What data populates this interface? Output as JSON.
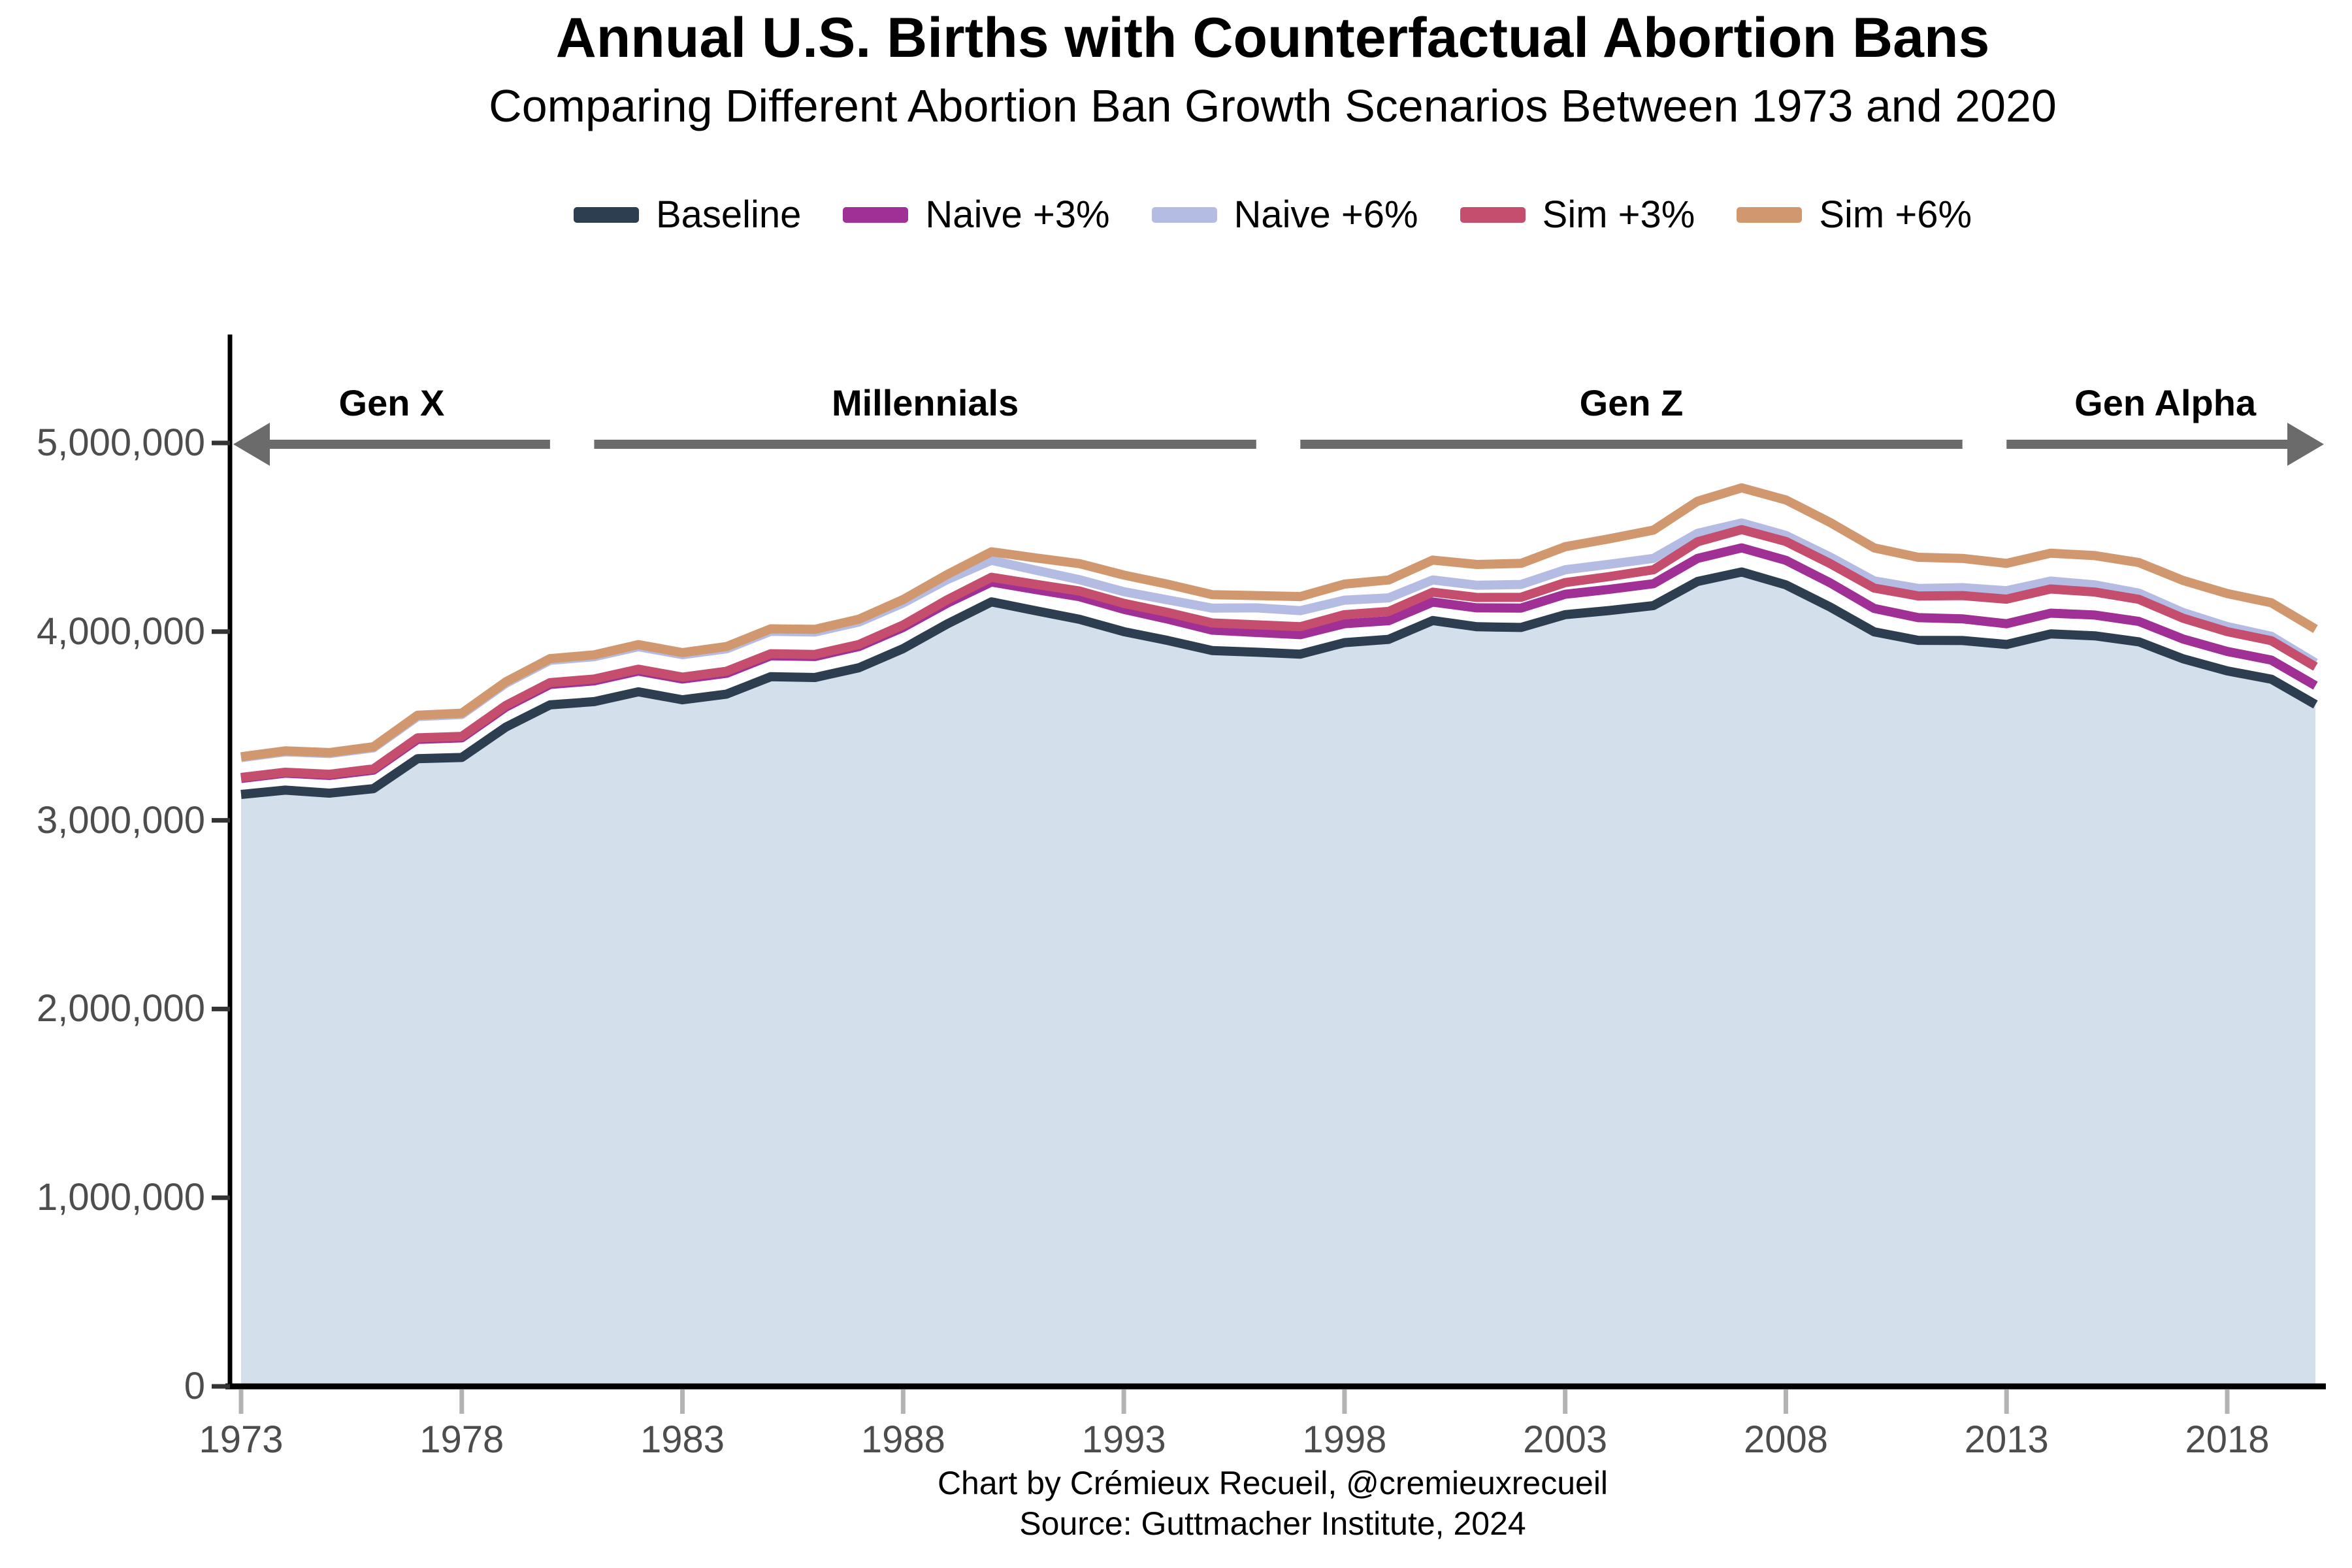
{
  "title": "Annual U.S. Births with Counterfactual Abortion Bans",
  "subtitle": "Comparing Different Abortion Ban Growth Scenarios Between 1973 and 2020",
  "footer": {
    "line1": "Chart by Crémieux Recueil, @cremieuxrecueil",
    "line2": "Source: Guttmacher Institute, 2024"
  },
  "palette": {
    "background": "#ffffff",
    "axis_line": "#000000",
    "y_tick_mark": "#333333",
    "x_tick_mark": "#b3b3b3",
    "axis_text": "#4d4d4d",
    "generation_arrow": "#6b6b6b",
    "area_fill": "#d3dfeb"
  },
  "chart_data": {
    "type": "line",
    "title": "Annual U.S. Births with Counterfactual Abortion Bans",
    "subtitle": "Comparing Different Abortion Ban Growth Scenarios Between 1973 and 2020",
    "xlabel": "",
    "ylabel": "",
    "legend_position": "top",
    "grid": false,
    "xlim": [
      1973,
      2020
    ],
    "ylim": [
      0,
      5000000
    ],
    "x": [
      1973,
      1974,
      1975,
      1976,
      1977,
      1978,
      1979,
      1980,
      1981,
      1982,
      1983,
      1984,
      1985,
      1986,
      1987,
      1988,
      1989,
      1990,
      1991,
      1992,
      1993,
      1994,
      1995,
      1996,
      1997,
      1998,
      1999,
      2000,
      2001,
      2002,
      2003,
      2004,
      2005,
      2006,
      2007,
      2008,
      2009,
      2010,
      2011,
      2012,
      2013,
      2014,
      2015,
      2016,
      2017,
      2018,
      2019,
      2020
    ],
    "y_ticks": [
      0,
      1000000,
      2000000,
      3000000,
      4000000,
      5000000
    ],
    "y_tick_labels": [
      "0",
      "1,000,000",
      "2,000,000",
      "3,000,000",
      "4,000,000",
      "5,000,000"
    ],
    "x_ticks": [
      1973,
      1978,
      1983,
      1988,
      1993,
      1998,
      2003,
      2008,
      2013,
      2018
    ],
    "x_tick_labels": [
      "1973",
      "1978",
      "1983",
      "1988",
      "1993",
      "1998",
      "2003",
      "2008",
      "2013",
      "2018"
    ],
    "series": [
      {
        "name": "Baseline",
        "color": "#2c3e50",
        "area_fill": "#d3dfeb",
        "values": [
          3137000,
          3160000,
          3144000,
          3168000,
          3327000,
          3333000,
          3494000,
          3612000,
          3629000,
          3681000,
          3639000,
          3669000,
          3761000,
          3757000,
          3809000,
          3910000,
          4041000,
          4158000,
          4111000,
          4065000,
          4000000,
          3953000,
          3900000,
          3891000,
          3881000,
          3942000,
          3959000,
          4059000,
          4026000,
          4022000,
          4090000,
          4112000,
          4138000,
          4266000,
          4316000,
          4248000,
          4131000,
          3999000,
          3954000,
          3953000,
          3932000,
          3988000,
          3978000,
          3946000,
          3856000,
          3792000,
          3748000,
          3614000
        ]
      },
      {
        "name": "Naive +3%",
        "color": "#a02f96",
        "values": [
          3222000,
          3250000,
          3238000,
          3266000,
          3429000,
          3437000,
          3600000,
          3720000,
          3739000,
          3791000,
          3749000,
          3779000,
          3872000,
          3868000,
          3921000,
          4022000,
          4151000,
          4263000,
          4223000,
          4185000,
          4118000,
          4066000,
          4008000,
          3996000,
          3984000,
          4042000,
          4058000,
          4157000,
          4126000,
          4125000,
          4198000,
          4224000,
          4254000,
          4388000,
          4444000,
          4378000,
          4259000,
          4123000,
          4074000,
          4068000,
          4042000,
          4098000,
          4088000,
          4054000,
          3961000,
          3895000,
          3849000,
          3714000
        ]
      },
      {
        "name": "Naive +6%",
        "color": "#b5bce3",
        "values": [
          3332000,
          3363000,
          3354000,
          3384000,
          3550000,
          3561000,
          3726000,
          3848000,
          3867000,
          3920000,
          3878000,
          3909000,
          4002000,
          3998000,
          4051000,
          4152000,
          4276000,
          4378000,
          4326000,
          4275000,
          4212000,
          4168000,
          4125000,
          4126000,
          4111000,
          4167000,
          4179000,
          4274000,
          4246000,
          4250000,
          4328000,
          4357000,
          4388000,
          4521000,
          4576000,
          4510000,
          4396000,
          4269000,
          4229000,
          4233000,
          4217000,
          4268000,
          4248000,
          4204000,
          4101000,
          4027000,
          3975000,
          3834000
        ]
      },
      {
        "name": "Sim +3%",
        "color": "#c54d6d",
        "values": [
          3227000,
          3255000,
          3244000,
          3273000,
          3437000,
          3445000,
          3609000,
          3730000,
          3749000,
          3801000,
          3759000,
          3790000,
          3883000,
          3879000,
          3932000,
          4035000,
          4169000,
          4288000,
          4251000,
          4215000,
          4150000,
          4101000,
          4046000,
          4036000,
          4026000,
          4090000,
          4107000,
          4209000,
          4181000,
          4182000,
          4260000,
          4292000,
          4328000,
          4476000,
          4541000,
          4478000,
          4361000,
          4231000,
          4189000,
          4191000,
          4172000,
          4226000,
          4210000,
          4171000,
          4071000,
          4000000,
          3952000,
          3814000
        ]
      },
      {
        "name": "Sim +6%",
        "color": "#d1986f",
        "values": [
          3337000,
          3368000,
          3359000,
          3390000,
          3557000,
          3568000,
          3734000,
          3857000,
          3877000,
          3931000,
          3889000,
          3921000,
          4015000,
          4012000,
          4066000,
          4170000,
          4303000,
          4423000,
          4391000,
          4360000,
          4300000,
          4251000,
          4196000,
          4191000,
          4186000,
          4252000,
          4274000,
          4379000,
          4356000,
          4362000,
          4450000,
          4492000,
          4538000,
          4691000,
          4762000,
          4698000,
          4579000,
          4444000,
          4394000,
          4388000,
          4362000,
          4416000,
          4403000,
          4366000,
          4271000,
          4202000,
          4153000,
          4014000
        ]
      }
    ],
    "generations": [
      {
        "label": "Gen X",
        "start_year": 1973,
        "end_year": 1980,
        "arrow": "left"
      },
      {
        "label": "Millennials",
        "start_year": 1981,
        "end_year": 1996,
        "arrow": "none"
      },
      {
        "label": "Gen Z",
        "start_year": 1997,
        "end_year": 2012,
        "arrow": "none"
      },
      {
        "label": "Gen Alpha",
        "start_year": 2013,
        "end_year": 2021,
        "arrow": "right"
      }
    ]
  }
}
